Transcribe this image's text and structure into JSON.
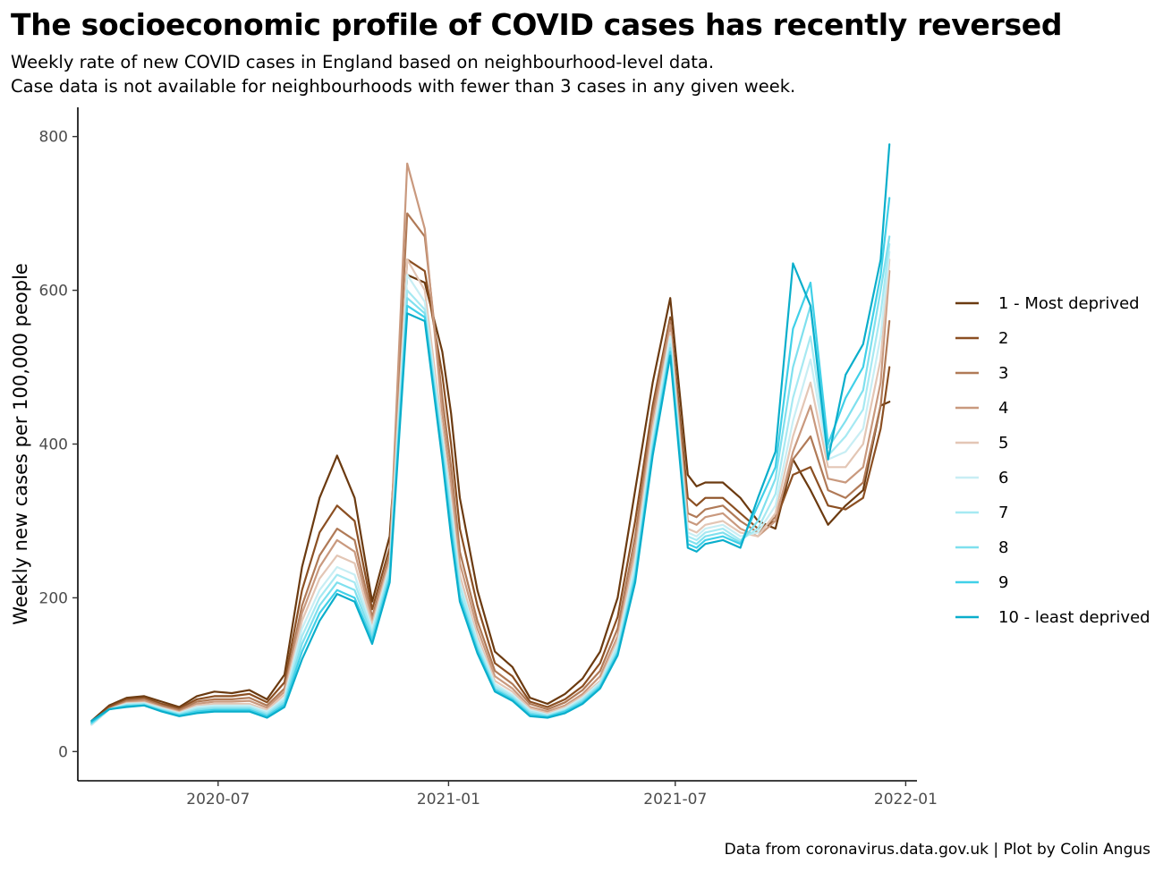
{
  "title": "The socioeconomic profile of COVID cases has recently reversed",
  "subtitle_lines": [
    "Weekly rate of new COVID cases in England based on neighbourhood-level data.",
    "Case data is not available for neighbourhoods with fewer than 3 cases in any given week."
  ],
  "caption": "Data from coronavirus.data.gov.uk | Plot by Colin Angus",
  "chart_data": {
    "type": "line",
    "title": "The socioeconomic profile of COVID cases has recently reversed",
    "subtitle": "Weekly rate of new COVID cases in England based on neighbourhood-level data. Case data is not available for neighbourhoods with fewer than 3 cases in any given week.",
    "xlabel": "",
    "ylabel": "Weekly new cases per 100,000 people",
    "x_ticks": [
      "2020-07",
      "2021-01",
      "2021-07",
      "2022-01"
    ],
    "y_ticks": [
      0,
      200,
      400,
      600,
      800
    ],
    "xlim": [
      "2020-03-11",
      "2022-01-10"
    ],
    "ylim": [
      -38,
      838
    ],
    "grid": false,
    "legend_position": "right",
    "x": [
      "2020-03-22",
      "2020-04-05",
      "2020-04-19",
      "2020-05-03",
      "2020-05-17",
      "2020-05-31",
      "2020-06-14",
      "2020-06-28",
      "2020-07-12",
      "2020-07-26",
      "2020-08-09",
      "2020-08-23",
      "2020-09-06",
      "2020-09-20",
      "2020-10-04",
      "2020-10-18",
      "2020-11-01",
      "2020-11-15",
      "2020-11-29",
      "2020-12-13",
      "2020-12-27",
      "2021-01-03",
      "2021-01-10",
      "2021-01-24",
      "2021-02-07",
      "2021-02-21",
      "2021-03-07",
      "2021-03-21",
      "2021-04-04",
      "2021-04-18",
      "2021-05-02",
      "2021-05-16",
      "2021-05-30",
      "2021-06-13",
      "2021-06-27",
      "2021-07-11",
      "2021-07-18",
      "2021-07-25",
      "2021-08-08",
      "2021-08-22",
      "2021-09-05",
      "2021-09-19",
      "2021-10-03",
      "2021-10-17",
      "2021-10-31",
      "2021-11-14",
      "2021-11-28",
      "2021-12-12",
      "2021-12-19"
    ],
    "series": [
      {
        "name": "1 - Most deprived",
        "color": "#6b3a10",
        "values": [
          40,
          60,
          70,
          72,
          65,
          58,
          72,
          78,
          76,
          80,
          68,
          100,
          240,
          330,
          385,
          330,
          195,
          280,
          620,
          610,
          520,
          440,
          330,
          210,
          130,
          110,
          70,
          62,
          75,
          95,
          130,
          200,
          340,
          480,
          590,
          360,
          345,
          350,
          350,
          330,
          300,
          290,
          380,
          340,
          295,
          320,
          340,
          450,
          455
        ]
      },
      {
        "name": "2",
        "color": "#8b4f22",
        "values": [
          38,
          58,
          68,
          70,
          62,
          56,
          68,
          72,
          72,
          75,
          64,
          90,
          210,
          285,
          320,
          300,
          185,
          265,
          640,
          625,
          490,
          400,
          290,
          190,
          115,
          98,
          65,
          58,
          68,
          85,
          115,
          175,
          300,
          450,
          565,
          330,
          320,
          330,
          330,
          310,
          290,
          300,
          360,
          370,
          320,
          315,
          330,
          420,
          500
        ]
      },
      {
        "name": "3",
        "color": "#b07a57",
        "values": [
          36,
          56,
          66,
          68,
          60,
          54,
          65,
          68,
          68,
          70,
          60,
          82,
          190,
          255,
          290,
          275,
          175,
          255,
          700,
          670,
          460,
          370,
          260,
          170,
          105,
          88,
          62,
          55,
          64,
          80,
          105,
          160,
          280,
          440,
          560,
          310,
          305,
          315,
          320,
          300,
          285,
          305,
          380,
          410,
          340,
          330,
          350,
          450,
          560
        ]
      },
      {
        "name": "4",
        "color": "#c9997e",
        "values": [
          35,
          55,
          64,
          66,
          58,
          52,
          62,
          65,
          65,
          66,
          57,
          78,
          180,
          240,
          275,
          260,
          170,
          250,
          765,
          680,
          440,
          350,
          245,
          160,
          98,
          82,
          58,
          52,
          60,
          75,
          98,
          150,
          265,
          430,
          555,
          300,
          295,
          305,
          310,
          290,
          280,
          300,
          390,
          450,
          355,
          350,
          370,
          480,
          625
        ]
      },
      {
        "name": "5",
        "color": "#e3c6b5",
        "values": [
          35,
          55,
          63,
          64,
          57,
          51,
          60,
          62,
          62,
          62,
          54,
          74,
          170,
          225,
          255,
          245,
          165,
          245,
          640,
          600,
          420,
          330,
          230,
          150,
          92,
          78,
          56,
          50,
          58,
          72,
          92,
          145,
          255,
          420,
          545,
          290,
          285,
          295,
          300,
          285,
          280,
          310,
          410,
          480,
          370,
          370,
          400,
          510,
          640
        ]
      },
      {
        "name": "6",
        "color": "#c8eef4",
        "values": [
          35,
          55,
          62,
          63,
          56,
          50,
          58,
          60,
          60,
          60,
          52,
          70,
          160,
          210,
          240,
          230,
          160,
          240,
          620,
          585,
          410,
          320,
          220,
          145,
          88,
          74,
          54,
          48,
          56,
          70,
          90,
          140,
          245,
          410,
          540,
          285,
          280,
          290,
          295,
          280,
          285,
          320,
          430,
          510,
          380,
          390,
          420,
          540,
          650
        ]
      },
      {
        "name": "7",
        "color": "#a6e9f2",
        "values": [
          36,
          55,
          61,
          62,
          55,
          49,
          56,
          58,
          58,
          58,
          50,
          67,
          150,
          200,
          230,
          220,
          155,
          235,
          600,
          575,
          400,
          310,
          215,
          140,
          85,
          72,
          52,
          47,
          54,
          68,
          88,
          135,
          235,
          400,
          530,
          280,
          275,
          285,
          290,
          275,
          290,
          335,
          460,
          540,
          385,
          410,
          445,
          570,
          660
        ]
      },
      {
        "name": "8",
        "color": "#7fe0ee",
        "values": [
          37,
          55,
          60,
          61,
          54,
          48,
          54,
          56,
          56,
          56,
          48,
          64,
          140,
          190,
          220,
          210,
          150,
          230,
          590,
          570,
          395,
          300,
          205,
          135,
          82,
          70,
          50,
          46,
          53,
          66,
          86,
          130,
          230,
          395,
          525,
          275,
          270,
          280,
          285,
          272,
          300,
          355,
          500,
          580,
          395,
          430,
          470,
          600,
          670
        ]
      },
      {
        "name": "9",
        "color": "#40d0e8",
        "values": [
          38,
          55,
          59,
          60,
          53,
          47,
          52,
          54,
          54,
          54,
          46,
          61,
          130,
          180,
          210,
          200,
          145,
          225,
          580,
          565,
          385,
          290,
          200,
          132,
          80,
          68,
          48,
          45,
          52,
          64,
          84,
          128,
          225,
          390,
          520,
          270,
          265,
          275,
          280,
          270,
          320,
          370,
          550,
          610,
          400,
          460,
          500,
          620,
          720
        ]
      },
      {
        "name": "10 - least deprived",
        "color": "#0aaecb",
        "values": [
          40,
          55,
          58,
          60,
          52,
          46,
          50,
          52,
          52,
          52,
          44,
          58,
          120,
          170,
          205,
          195,
          140,
          220,
          570,
          560,
          380,
          280,
          195,
          128,
          78,
          66,
          46,
          44,
          50,
          62,
          82,
          125,
          220,
          385,
          515,
          265,
          260,
          270,
          275,
          265,
          330,
          390,
          635,
          580,
          380,
          490,
          530,
          640,
          790
        ]
      }
    ]
  }
}
